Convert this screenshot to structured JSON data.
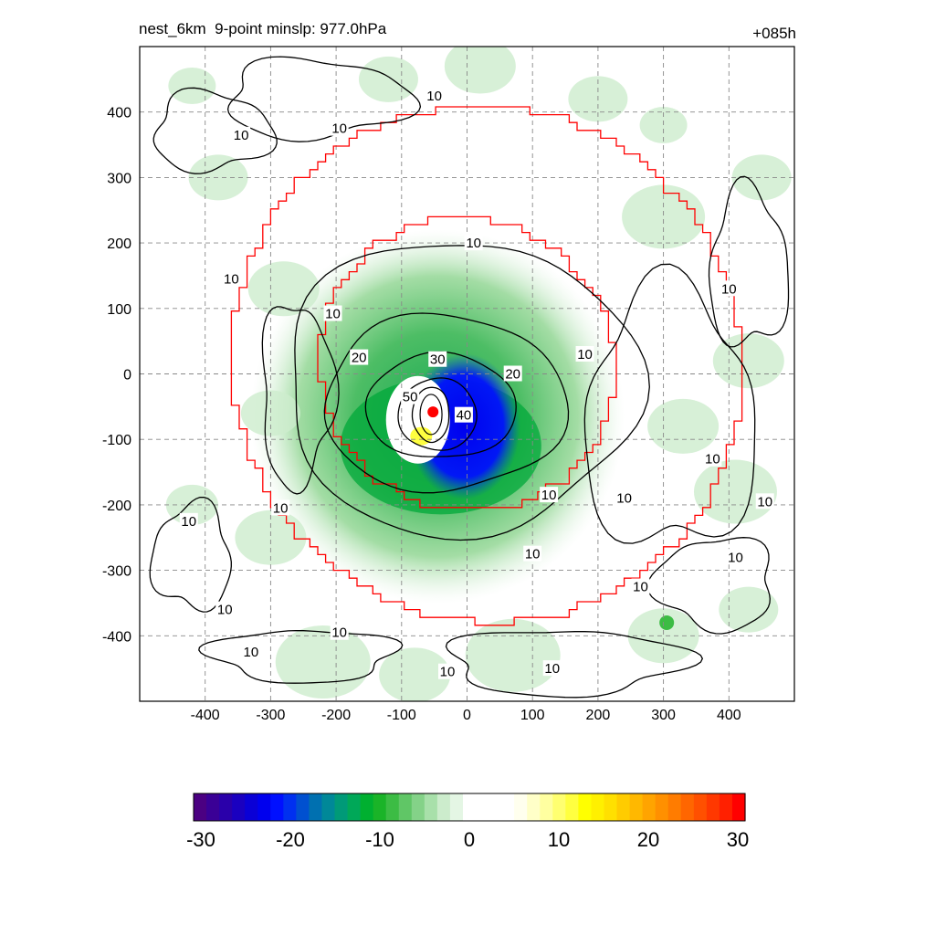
{
  "header": {
    "title": "nest_6km  9-point minslp: 977.0hPa",
    "forecast_hour": "+085h"
  },
  "chart_data": {
    "type": "heatmap",
    "title": "nest_6km  9-point minslp: 977.0hPa",
    "annotation_right": "+085h",
    "xlim": [
      -500,
      500
    ],
    "ylim": [
      -500,
      500
    ],
    "grid": true,
    "x_ticks": [
      -400,
      -300,
      -200,
      -100,
      0,
      100,
      200,
      300,
      400
    ],
    "y_ticks": [
      400,
      300,
      200,
      100,
      0,
      -100,
      -200,
      -300,
      -400
    ],
    "center_marker": {
      "x": -52,
      "y": -58,
      "color": "#ff0000"
    },
    "contour_levels": [
      10,
      20,
      30,
      40,
      50
    ],
    "contour_labels": [
      {
        "text": "10",
        "x": 10,
        "y": 200
      },
      {
        "text": "10",
        "x": -205,
        "y": 92
      },
      {
        "text": "10",
        "x": 180,
        "y": 30
      },
      {
        "text": "10",
        "x": 125,
        "y": -185
      },
      {
        "text": "10",
        "x": -285,
        "y": -205
      },
      {
        "text": "10",
        "x": -425,
        "y": -225
      },
      {
        "text": "10",
        "x": 100,
        "y": -275
      },
      {
        "text": "10",
        "x": -360,
        "y": 145
      },
      {
        "text": "10",
        "x": -345,
        "y": 365
      },
      {
        "text": "10",
        "x": -195,
        "y": 375
      },
      {
        "text": "10",
        "x": -50,
        "y": 425
      },
      {
        "text": "10",
        "x": 400,
        "y": 130
      },
      {
        "text": "10",
        "x": 240,
        "y": -190
      },
      {
        "text": "10",
        "x": 375,
        "y": -130
      },
      {
        "text": "10",
        "x": 455,
        "y": -195
      },
      {
        "text": "10",
        "x": 410,
        "y": -280
      },
      {
        "text": "10",
        "x": 265,
        "y": -325
      },
      {
        "text": "10",
        "x": -370,
        "y": -360
      },
      {
        "text": "10",
        "x": -195,
        "y": -395
      },
      {
        "text": "10",
        "x": -330,
        "y": -425
      },
      {
        "text": "10",
        "x": -30,
        "y": -455
      },
      {
        "text": "10",
        "x": 130,
        "y": -450
      },
      {
        "text": "20",
        "x": -165,
        "y": 25
      },
      {
        "text": "20",
        "x": 70,
        "y": 0
      },
      {
        "text": "30",
        "x": -45,
        "y": 22
      },
      {
        "text": "40",
        "x": -5,
        "y": -63
      },
      {
        "text": "50",
        "x": -87,
        "y": -35
      }
    ],
    "colorbar": {
      "min": -30,
      "max": 30,
      "tick_labels": [
        "-30",
        "-20",
        "-10",
        "0",
        "10",
        "20",
        "30"
      ],
      "colors": [
        "#4b0082",
        "#3a0096",
        "#2a00aa",
        "#1a00c0",
        "#0a00d6",
        "#0000ee",
        "#0010ff",
        "#0030f0",
        "#0050d0",
        "#0070b0",
        "#008898",
        "#009a78",
        "#00a858",
        "#00b030",
        "#1ab428",
        "#3cbc44",
        "#60c666",
        "#84d288",
        "#a8e0aa",
        "#cceccc",
        "#e4f6e4",
        "#ffffff",
        "#ffffff",
        "#ffffff",
        "#ffffff",
        "#ffffee",
        "#ffffc8",
        "#ffffa0",
        "#ffff70",
        "#ffff40",
        "#ffff00",
        "#fff000",
        "#ffe000",
        "#ffcc00",
        "#ffb800",
        "#ffa400",
        "#ff9000",
        "#ff7c00",
        "#ff6600",
        "#ff5000",
        "#ff3800",
        "#ff2000",
        "#ff0000"
      ]
    }
  }
}
